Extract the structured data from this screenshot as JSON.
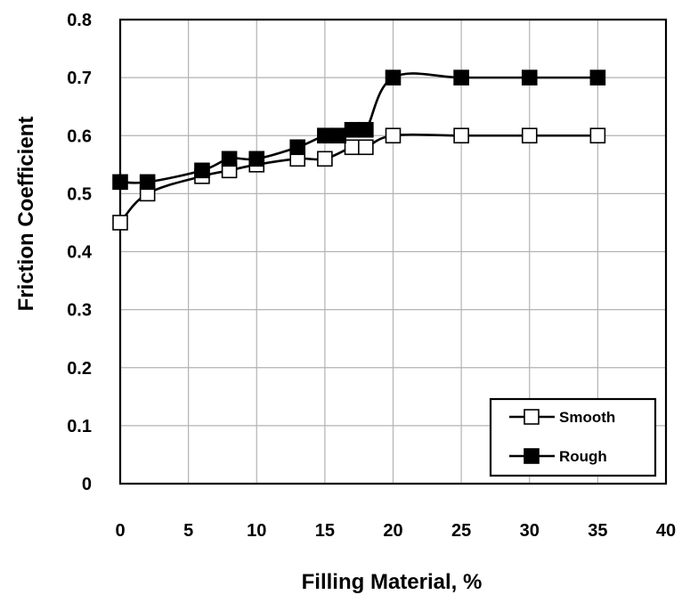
{
  "chart_data": {
    "type": "line",
    "xlabel": "Filling Material, %",
    "ylabel": "Friction Coefficient",
    "xlim": [
      0,
      40
    ],
    "ylim": [
      0,
      0.8
    ],
    "xticks": [
      0,
      5,
      10,
      15,
      20,
      25,
      30,
      35,
      40
    ],
    "yticks": [
      0,
      0.1,
      0.2,
      0.3,
      0.4,
      0.5,
      0.6,
      0.7,
      0.8
    ],
    "xtick_labels": [
      "0",
      "5",
      "10",
      "15",
      "20",
      "25",
      "30",
      "35",
      "40"
    ],
    "ytick_labels": [
      "0",
      "0.1",
      "0.2",
      "0.3",
      "0.4",
      "0.5",
      "0.6",
      "0.7",
      "0.8"
    ],
    "grid": true,
    "legend_position": "bottom-right",
    "series": [
      {
        "name": "Smooth",
        "marker": "square-open",
        "x": [
          0,
          2,
          6,
          8,
          10,
          13,
          15,
          17,
          18,
          20,
          25,
          30,
          35
        ],
        "y": [
          0.45,
          0.5,
          0.53,
          0.54,
          0.55,
          0.56,
          0.56,
          0.58,
          0.58,
          0.6,
          0.6,
          0.6,
          0.6
        ]
      },
      {
        "name": "Rough",
        "marker": "square-filled",
        "x": [
          0,
          2,
          6,
          8,
          10,
          13,
          15,
          16,
          17,
          18,
          20,
          25,
          30,
          35
        ],
        "y": [
          0.52,
          0.52,
          0.54,
          0.56,
          0.56,
          0.58,
          0.6,
          0.6,
          0.61,
          0.61,
          0.7,
          0.7,
          0.7,
          0.7
        ]
      }
    ]
  }
}
